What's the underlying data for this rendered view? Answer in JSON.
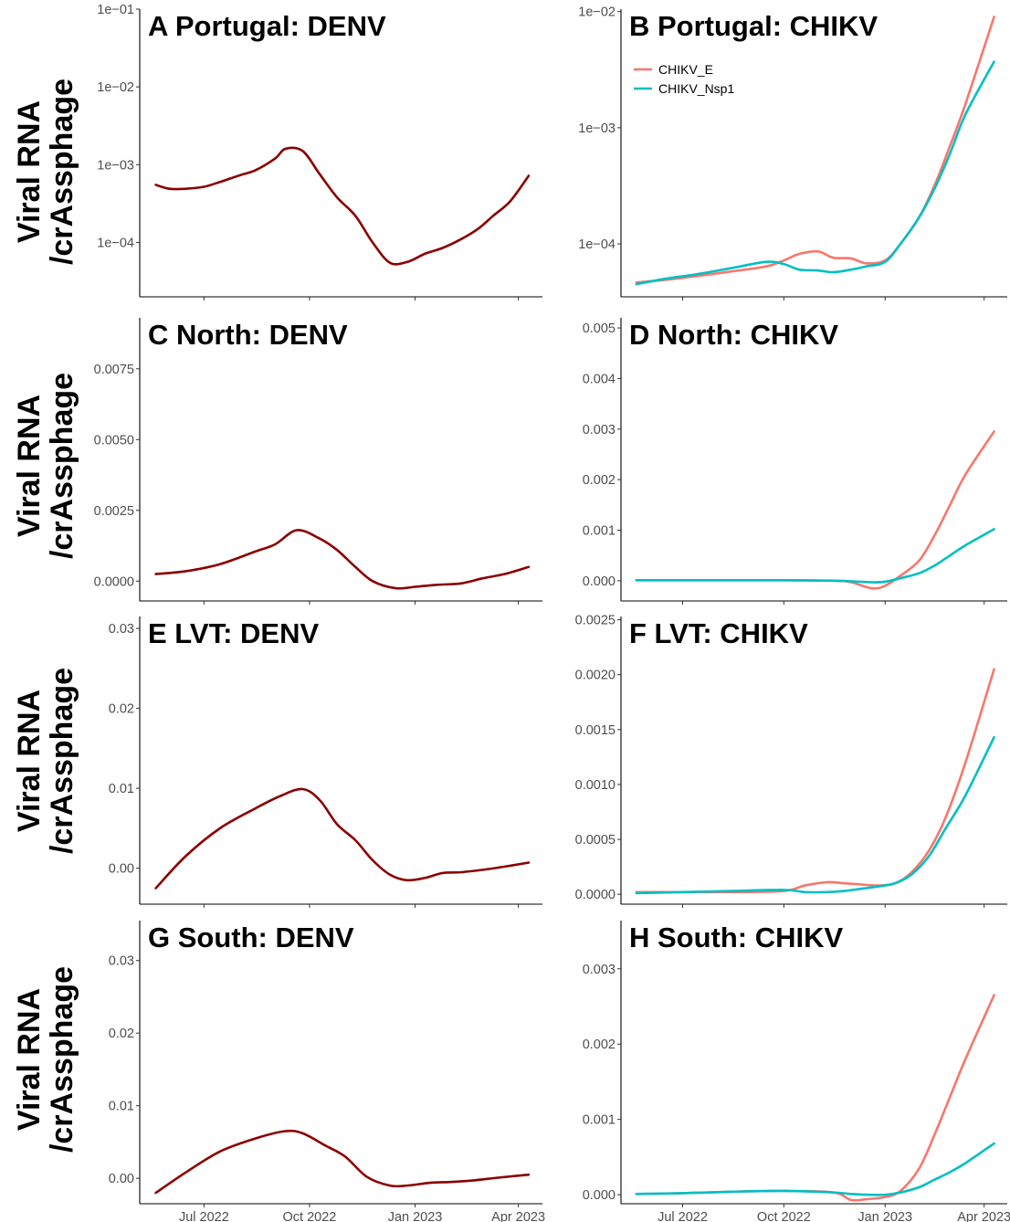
{
  "y_axis_label": [
    "Viral RNA",
    "/crAssphage"
  ],
  "x_axis_ticks": [
    "Jul 2022",
    "Oct 2022",
    "Jan 2023",
    "Apr 2023"
  ],
  "legend": [
    {
      "name": "CHIKV_E",
      "color": "#F8766D"
    },
    {
      "name": "CHIKV_Nsp1",
      "color": "#00BFC4"
    }
  ],
  "colors": {
    "denv": "#8B0000",
    "chikv_e": "#F8766D",
    "chikv_nsp1": "#00BFC4"
  },
  "chart_data": [
    {
      "type": "line",
      "title": "A Portugal: DENV",
      "yscale": "log",
      "ylim": [
        2e-05,
        0.1
      ],
      "yticks": [
        0.0001,
        0.001,
        0.01,
        0.1
      ],
      "ytick_labels": [
        "1e−04",
        "1e−03",
        "1e−02",
        "1e−01"
      ],
      "x_dates": [
        "2022-05-20",
        "2022-06-01",
        "2022-06-15",
        "2022-07-01",
        "2022-07-15",
        "2022-08-01",
        "2022-08-15",
        "2022-09-01",
        "2022-09-10",
        "2022-09-25",
        "2022-10-10",
        "2022-10-25",
        "2022-11-10",
        "2022-11-25",
        "2022-12-10",
        "2022-12-25",
        "2023-01-10",
        "2023-01-25",
        "2023-02-10",
        "2023-02-25",
        "2023-03-10",
        "2023-03-25",
        "2023-04-10"
      ],
      "series": [
        {
          "color": "#8B0000",
          "values": [
            0.00055,
            0.00049,
            0.00049,
            0.00052,
            0.0006,
            0.00073,
            0.00085,
            0.0012,
            0.0016,
            0.0015,
            0.00075,
            0.00038,
            0.00022,
            0.0001,
            5.5e-05,
            5.6e-05,
            7.2e-05,
            8.5e-05,
            0.00011,
            0.00015,
            0.00022,
            0.00034,
            0.00072
          ]
        }
      ]
    },
    {
      "type": "line",
      "title": "B Portugal: CHIKV",
      "yscale": "log",
      "ylim": [
        3.5e-05,
        0.0105
      ],
      "yticks": [
        0.0001,
        0.001,
        0.01
      ],
      "ytick_labels": [
        "1e−04",
        "1e−03",
        "1e−02"
      ],
      "legend_position": "top-left",
      "x_dates": [
        "2022-05-20",
        "2022-06-15",
        "2022-07-15",
        "2022-08-15",
        "2022-09-15",
        "2022-10-01",
        "2022-10-15",
        "2022-11-01",
        "2022-11-15",
        "2022-12-01",
        "2022-12-15",
        "2023-01-01",
        "2023-01-15",
        "2023-02-01",
        "2023-02-15",
        "2023-03-01",
        "2023-03-15",
        "2023-04-10"
      ],
      "series": [
        {
          "name": "CHIKV_E",
          "color": "#F8766D",
          "values": [
            4.65e-05,
            4.9e-05,
            5.3e-05,
            5.8e-05,
            6.4e-05,
            7.2e-05,
            8.2e-05,
            8.6e-05,
            7.6e-05,
            7.5e-05,
            6.8e-05,
            7.2e-05,
            0.0001,
            0.00017,
            0.00032,
            0.0007,
            0.0016,
            0.009
          ]
        },
        {
          "name": "CHIKV_Nsp1",
          "color": "#00BFC4",
          "values": [
            4.5e-05,
            5e-05,
            5.5e-05,
            6.2e-05,
            7e-05,
            6.7e-05,
            6e-05,
            5.9e-05,
            5.7e-05,
            6e-05,
            6.4e-05,
            7e-05,
            0.0001,
            0.00017,
            0.0003,
            0.0006,
            0.0013,
            0.0037
          ]
        }
      ]
    },
    {
      "type": "line",
      "title": "C North: DENV",
      "yscale": "linear",
      "ylim": [
        -0.0007,
        0.0093
      ],
      "yticks": [
        0,
        0.0025,
        0.005,
        0.0075
      ],
      "ytick_labels": [
        "0.0000",
        "0.0025",
        "0.0050",
        "0.0075"
      ],
      "x_dates": [
        "2022-05-20",
        "2022-06-15",
        "2022-07-15",
        "2022-08-15",
        "2022-09-01",
        "2022-09-20",
        "2022-10-10",
        "2022-10-25",
        "2022-11-10",
        "2022-11-25",
        "2022-12-15",
        "2023-01-01",
        "2023-01-20",
        "2023-02-10",
        "2023-03-01",
        "2023-03-20",
        "2023-04-10"
      ],
      "series": [
        {
          "color": "#8B0000",
          "values": [
            0.00025,
            0.00035,
            0.0006,
            0.00105,
            0.0013,
            0.0018,
            0.0015,
            0.0011,
            0.0005,
            0.0,
            -0.00025,
            -0.0002,
            -0.00013,
            -8e-05,
            0.0001,
            0.00025,
            0.0005
          ]
        }
      ]
    },
    {
      "type": "line",
      "title": "D North: CHIKV",
      "yscale": "linear",
      "ylim": [
        -0.0004,
        0.0052
      ],
      "yticks": [
        0,
        0.001,
        0.002,
        0.003,
        0.004,
        0.005
      ],
      "ytick_labels": [
        "0.000",
        "0.001",
        "0.002",
        "0.003",
        "0.004",
        "0.005"
      ],
      "x_dates": [
        "2022-05-20",
        "2022-07-01",
        "2022-08-15",
        "2022-10-01",
        "2022-11-15",
        "2022-12-01",
        "2022-12-20",
        "2023-01-01",
        "2023-01-15",
        "2023-02-01",
        "2023-02-15",
        "2023-03-01",
        "2023-03-15",
        "2023-04-10"
      ],
      "series": [
        {
          "name": "CHIKV_E",
          "color": "#F8766D",
          "values": [
            1e-05,
            1e-05,
            1e-05,
            1e-05,
            0.0,
            -3e-05,
            -0.00015,
            -0.0001,
            0.0001,
            0.0004,
            0.0009,
            0.0015,
            0.0021,
            0.00295
          ]
        },
        {
          "name": "CHIKV_Nsp1",
          "color": "#00BFC4",
          "values": [
            1e-05,
            1e-05,
            1e-05,
            1e-05,
            0.0,
            -1e-05,
            -3e-05,
            -2e-05,
            5e-05,
            0.00015,
            0.0003,
            0.0005,
            0.0007,
            0.00102
          ]
        }
      ]
    },
    {
      "type": "line",
      "title": "E LVT: DENV",
      "yscale": "linear",
      "ylim": [
        -0.0045,
        0.0315
      ],
      "yticks": [
        0,
        0.01,
        0.02,
        0.03
      ],
      "ytick_labels": [
        "0.00",
        "0.01",
        "0.02",
        "0.03"
      ],
      "x_dates": [
        "2022-05-20",
        "2022-06-15",
        "2022-07-15",
        "2022-08-15",
        "2022-09-05",
        "2022-09-25",
        "2022-10-10",
        "2022-10-25",
        "2022-11-10",
        "2022-11-25",
        "2022-12-10",
        "2022-12-25",
        "2023-01-10",
        "2023-01-25",
        "2023-02-10",
        "2023-03-01",
        "2023-03-20",
        "2023-04-10"
      ],
      "series": [
        {
          "color": "#8B0000",
          "values": [
            -0.0025,
            0.0015,
            0.005,
            0.0075,
            0.009,
            0.0099,
            0.0085,
            0.0055,
            0.0035,
            0.001,
            -0.0008,
            -0.0015,
            -0.0012,
            -0.0006,
            -0.0005,
            -0.0002,
            0.0002,
            0.0007
          ]
        }
      ]
    },
    {
      "type": "line",
      "title": "F LVT: CHIKV",
      "yscale": "linear",
      "ylim": [
        -9e-05,
        0.00253
      ],
      "yticks": [
        0,
        0.0005,
        0.001,
        0.0015,
        0.002,
        0.0025
      ],
      "ytick_labels": [
        "0.0000",
        "0.0005",
        "0.0010",
        "0.0015",
        "0.0020",
        "0.0025"
      ],
      "x_dates": [
        "2022-05-20",
        "2022-07-01",
        "2022-08-15",
        "2022-10-01",
        "2022-10-20",
        "2022-11-10",
        "2022-11-25",
        "2022-12-10",
        "2022-12-25",
        "2023-01-10",
        "2023-01-25",
        "2023-02-10",
        "2023-02-25",
        "2023-03-15",
        "2023-04-10"
      ],
      "series": [
        {
          "name": "CHIKV_E",
          "color": "#F8766D",
          "values": [
            2e-05,
            2e-05,
            2e-05,
            3e-05,
            8e-05,
            0.00011,
            0.0001,
            9e-05,
            8e-05,
            0.0001,
            0.0002,
            0.0004,
            0.0007,
            0.0012,
            0.00205
          ]
        },
        {
          "name": "CHIKV_Nsp1",
          "color": "#00BFC4",
          "values": [
            1e-05,
            2e-05,
            3e-05,
            4e-05,
            2e-05,
            2e-05,
            3e-05,
            5e-05,
            7e-05,
            0.0001,
            0.00018,
            0.00035,
            0.0006,
            0.0009,
            0.00143
          ]
        }
      ]
    },
    {
      "type": "line",
      "title": "G South: DENV",
      "yscale": "linear",
      "ylim": [
        -0.0035,
        0.0355
      ],
      "yticks": [
        0,
        0.01,
        0.02,
        0.03
      ],
      "ytick_labels": [
        "0.00",
        "0.01",
        "0.02",
        "0.03"
      ],
      "x_dates": [
        "2022-05-20",
        "2022-06-15",
        "2022-07-15",
        "2022-08-15",
        "2022-09-10",
        "2022-09-25",
        "2022-10-15",
        "2022-11-01",
        "2022-11-20",
        "2022-12-10",
        "2022-12-25",
        "2023-01-15",
        "2023-02-01",
        "2023-02-20",
        "2023-03-15",
        "2023-04-10"
      ],
      "series": [
        {
          "color": "#8B0000",
          "values": [
            -0.002,
            0.0008,
            0.0037,
            0.0055,
            0.0065,
            0.0062,
            0.0045,
            0.003,
            0.0002,
            -0.001,
            -0.001,
            -0.0006,
            -0.0005,
            -0.0003,
            0.0001,
            0.0005
          ]
        }
      ]
    },
    {
      "type": "line",
      "title": "H South: CHIKV",
      "yscale": "linear",
      "ylim": [
        -0.00012,
        0.00364
      ],
      "yticks": [
        0,
        0.001,
        0.002,
        0.003
      ],
      "ytick_labels": [
        "0.000",
        "0.001",
        "0.002",
        "0.003"
      ],
      "x_dates": [
        "2022-05-20",
        "2022-07-01",
        "2022-08-15",
        "2022-10-01",
        "2022-11-15",
        "2022-12-01",
        "2022-12-15",
        "2023-01-01",
        "2023-01-15",
        "2023-02-01",
        "2023-02-15",
        "2023-03-01",
        "2023-03-15",
        "2023-04-10"
      ],
      "series": [
        {
          "name": "CHIKV_E",
          "color": "#F8766D",
          "values": [
            1e-05,
            2e-05,
            4e-05,
            5e-05,
            3e-05,
            -7e-05,
            -6e-05,
            -3e-05,
            5e-05,
            0.00035,
            0.0008,
            0.0013,
            0.0018,
            0.00265
          ]
        },
        {
          "name": "CHIKV_Nsp1",
          "color": "#00BFC4",
          "values": [
            1e-05,
            2e-05,
            4e-05,
            5e-05,
            3e-05,
            1e-05,
            0.0,
            0.0,
            3e-05,
            0.0001,
            0.0002,
            0.0003,
            0.00042,
            0.00068
          ]
        }
      ]
    }
  ]
}
